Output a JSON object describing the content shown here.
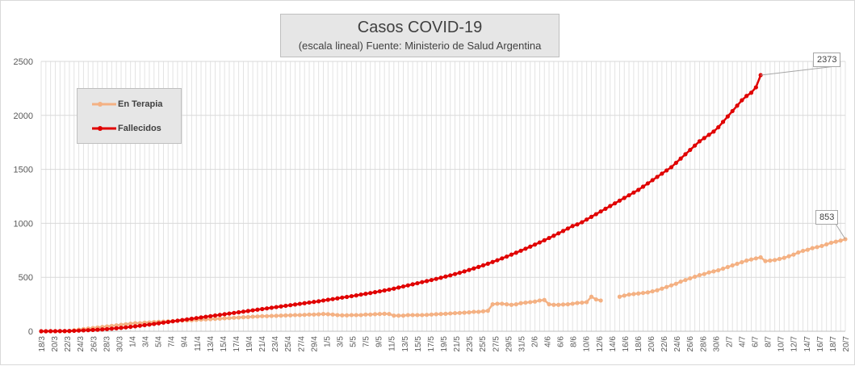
{
  "chart_data": {
    "type": "line",
    "title": "Casos COVID-19",
    "subtitle": "(escala lineal) Fuente: Ministerio de Salud Argentina",
    "ylim": [
      0,
      2500
    ],
    "yticks": [
      0,
      500,
      1000,
      1500,
      2000,
      2500
    ],
    "grid": true,
    "legend_position": "top-left",
    "x_start": "18/3",
    "x_end": "20/7",
    "xtick_labels": [
      "18/3",
      "20/3",
      "22/3",
      "24/3",
      "26/3",
      "28/3",
      "30/3",
      "1/4",
      "3/4",
      "5/4",
      "7/4",
      "9/4",
      "11/4",
      "13/4",
      "15/4",
      "17/4",
      "19/4",
      "21/4",
      "23/4",
      "25/4",
      "27/4",
      "29/4",
      "1/5",
      "3/5",
      "5/5",
      "7/5",
      "9/5",
      "11/5",
      "13/5",
      "15/5",
      "17/5",
      "19/5",
      "21/5",
      "23/5",
      "25/5",
      "27/5",
      "29/5",
      "31/5",
      "2/6",
      "4/6",
      "6/6",
      "8/6",
      "10/6",
      "12/6",
      "14/6",
      "16/6",
      "18/6",
      "20/6",
      "22/6",
      "24/6",
      "26/6",
      "28/6",
      "30/6",
      "2/7",
      "4/7",
      "6/7",
      "8/7",
      "10/7",
      "12/7",
      "14/7",
      "16/7",
      "18/7",
      "20/7"
    ],
    "series": [
      {
        "name": "En Terapia",
        "color": "#f4b183",
        "values": [
          0,
          0,
          0,
          0,
          0,
          0,
          0,
          10,
          15,
          20,
          25,
          30,
          35,
          40,
          45,
          50,
          55,
          60,
          65,
          70,
          75,
          75,
          80,
          82,
          85,
          88,
          90,
          92,
          95,
          97,
          100,
          100,
          102,
          105,
          108,
          110,
          112,
          115,
          117,
          120,
          122,
          125,
          127,
          130,
          132,
          135,
          137,
          140,
          140,
          142,
          143,
          145,
          147,
          148,
          150,
          150,
          152,
          155,
          155,
          157,
          160,
          158,
          155,
          150,
          148,
          148,
          150,
          150,
          150,
          155,
          155,
          158,
          160,
          162,
          160,
          145,
          145,
          145,
          150,
          150,
          150,
          150,
          152,
          155,
          158,
          160,
          162,
          165,
          168,
          170,
          172,
          175,
          180,
          180,
          185,
          190,
          250,
          255,
          255,
          250,
          245,
          250,
          260,
          265,
          270,
          275,
          285,
          290,
          250,
          245,
          245,
          248,
          250,
          255,
          262,
          265,
          270,
          320,
          295,
          285,
          null,
          null,
          null,
          320,
          330,
          340,
          345,
          350,
          355,
          360,
          370,
          380,
          395,
          410,
          425,
          440,
          460,
          475,
          490,
          505,
          520,
          530,
          545,
          555,
          565,
          580,
          595,
          610,
          625,
          640,
          655,
          665,
          675,
          685,
          650,
          655,
          660,
          670,
          680,
          695,
          710,
          730,
          745,
          755,
          770,
          780,
          790,
          805,
          820,
          830,
          840,
          853
        ]
      },
      {
        "name": "Fallecidos",
        "color": "#e00000",
        "values": [
          0,
          0,
          1,
          1,
          2,
          2,
          3,
          4,
          6,
          8,
          10,
          12,
          14,
          17,
          20,
          24,
          28,
          32,
          36,
          41,
          46,
          51,
          57,
          62,
          68,
          74,
          80,
          86,
          92,
          98,
          104,
          110,
          116,
          122,
          128,
          134,
          140,
          146,
          152,
          158,
          164,
          170,
          176,
          182,
          188,
          194,
          200,
          206,
          212,
          218,
          224,
          230,
          236,
          242,
          248,
          254,
          260,
          266,
          272,
          278,
          285,
          292,
          298,
          305,
          312,
          318,
          325,
          332,
          340,
          347,
          354,
          362,
          370,
          378,
          386,
          395,
          405,
          415,
          425,
          435,
          445,
          455,
          465,
          475,
          485,
          496,
          507,
          518,
          530,
          542,
          555,
          568,
          582,
          596,
          611,
          626,
          642,
          658,
          675,
          692,
          710,
          728,
          746,
          765,
          784,
          803,
          823,
          843,
          864,
          885,
          907,
          929,
          952,
          975,
          990,
          1010,
          1035,
          1060,
          1085,
          1110,
          1135,
          1160,
          1185,
          1210,
          1235,
          1260,
          1285,
          1310,
          1340,
          1370,
          1400,
          1430,
          1460,
          1490,
          1520,
          1560,
          1600,
          1640,
          1680,
          1720,
          1760,
          1790,
          1820,
          1850,
          1890,
          1940,
          1990,
          2040,
          2090,
          2140,
          2180,
          2210,
          2260,
          2373
        ]
      }
    ],
    "annotations": [
      {
        "series": "Fallecidos",
        "text": "2373"
      },
      {
        "series": "En Terapia",
        "text": "853"
      }
    ]
  }
}
